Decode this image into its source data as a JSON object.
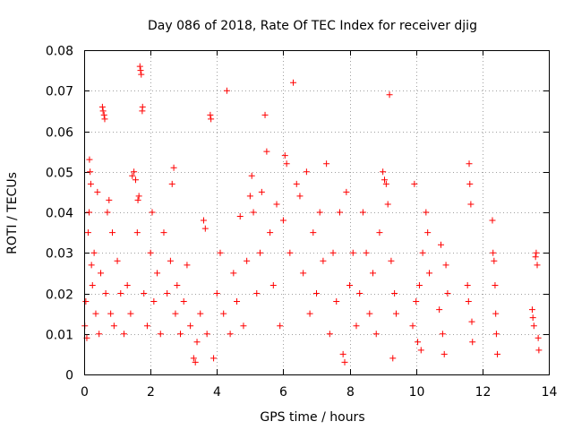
{
  "chart_data": {
    "type": "scatter",
    "title": "Day 086 of 2018, Rate Of TEC Index for receiver djig",
    "xlabel": "GPS time / hours",
    "ylabel": "ROTI / TECUs",
    "xlim": [
      0,
      14
    ],
    "ylim": [
      0,
      0.08
    ],
    "x_ticks": [
      0,
      2,
      4,
      6,
      8,
      10,
      12,
      14
    ],
    "x_tick_labels": [
      "0",
      "2",
      "4",
      "6",
      "8",
      "10",
      "12",
      "14"
    ],
    "y_ticks": [
      0,
      0.01,
      0.02,
      0.03,
      0.04,
      0.05,
      0.06,
      0.07,
      0.08
    ],
    "y_tick_labels": [
      "0",
      "0.01",
      "0.02",
      "0.03",
      "0.04",
      "0.05",
      "0.06",
      "0.07",
      "0.08"
    ],
    "grid": true,
    "marker": "plus",
    "color": "#ff0000",
    "series": [
      {
        "name": "ROTI",
        "points": [
          [
            0.02,
            0.012
          ],
          [
            0.05,
            0.018
          ],
          [
            0.08,
            0.009
          ],
          [
            0.12,
            0.035
          ],
          [
            0.15,
            0.04
          ],
          [
            0.16,
            0.053
          ],
          [
            0.18,
            0.05
          ],
          [
            0.2,
            0.047
          ],
          [
            0.22,
            0.027
          ],
          [
            0.25,
            0.022
          ],
          [
            0.3,
            0.03
          ],
          [
            0.35,
            0.015
          ],
          [
            0.4,
            0.045
          ],
          [
            0.45,
            0.01
          ],
          [
            0.5,
            0.025
          ],
          [
            0.55,
            0.066
          ],
          [
            0.57,
            0.065
          ],
          [
            0.6,
            0.064
          ],
          [
            0.62,
            0.063
          ],
          [
            0.65,
            0.02
          ],
          [
            0.7,
            0.04
          ],
          [
            0.75,
            0.043
          ],
          [
            0.8,
            0.015
          ],
          [
            0.85,
            0.035
          ],
          [
            0.9,
            0.012
          ],
          [
            1.0,
            0.028
          ],
          [
            1.1,
            0.02
          ],
          [
            1.2,
            0.01
          ],
          [
            1.3,
            0.022
          ],
          [
            1.4,
            0.015
          ],
          [
            1.45,
            0.049
          ],
          [
            1.5,
            0.05
          ],
          [
            1.55,
            0.048
          ],
          [
            1.6,
            0.035
          ],
          [
            1.62,
            0.043
          ],
          [
            1.65,
            0.044
          ],
          [
            1.68,
            0.076
          ],
          [
            1.7,
            0.075
          ],
          [
            1.72,
            0.074
          ],
          [
            1.75,
            0.065
          ],
          [
            1.76,
            0.066
          ],
          [
            1.8,
            0.02
          ],
          [
            1.9,
            0.012
          ],
          [
            2.0,
            0.03
          ],
          [
            2.05,
            0.04
          ],
          [
            2.1,
            0.018
          ],
          [
            2.2,
            0.025
          ],
          [
            2.3,
            0.01
          ],
          [
            2.4,
            0.035
          ],
          [
            2.5,
            0.02
          ],
          [
            2.6,
            0.028
          ],
          [
            2.65,
            0.047
          ],
          [
            2.7,
            0.051
          ],
          [
            2.75,
            0.015
          ],
          [
            2.8,
            0.022
          ],
          [
            2.9,
            0.01
          ],
          [
            3.0,
            0.018
          ],
          [
            3.1,
            0.027
          ],
          [
            3.2,
            0.012
          ],
          [
            3.3,
            0.004
          ],
          [
            3.35,
            0.003
          ],
          [
            3.4,
            0.008
          ],
          [
            3.5,
            0.015
          ],
          [
            3.6,
            0.038
          ],
          [
            3.65,
            0.036
          ],
          [
            3.7,
            0.01
          ],
          [
            3.8,
            0.064
          ],
          [
            3.82,
            0.063
          ],
          [
            3.9,
            0.004
          ],
          [
            4.0,
            0.02
          ],
          [
            4.1,
            0.03
          ],
          [
            4.2,
            0.015
          ],
          [
            4.3,
            0.07
          ],
          [
            4.4,
            0.01
          ],
          [
            4.5,
            0.025
          ],
          [
            4.6,
            0.018
          ],
          [
            4.7,
            0.039
          ],
          [
            4.8,
            0.012
          ],
          [
            4.9,
            0.028
          ],
          [
            5.0,
            0.044
          ],
          [
            5.05,
            0.049
          ],
          [
            5.1,
            0.04
          ],
          [
            5.2,
            0.02
          ],
          [
            5.3,
            0.03
          ],
          [
            5.35,
            0.045
          ],
          [
            5.45,
            0.064
          ],
          [
            5.5,
            0.055
          ],
          [
            5.6,
            0.035
          ],
          [
            5.7,
            0.022
          ],
          [
            5.8,
            0.042
          ],
          [
            5.9,
            0.012
          ],
          [
            6.0,
            0.038
          ],
          [
            6.05,
            0.054
          ],
          [
            6.1,
            0.052
          ],
          [
            6.2,
            0.03
          ],
          [
            6.3,
            0.072
          ],
          [
            6.4,
            0.047
          ],
          [
            6.5,
            0.044
          ],
          [
            6.6,
            0.025
          ],
          [
            6.7,
            0.05
          ],
          [
            6.8,
            0.015
          ],
          [
            6.9,
            0.035
          ],
          [
            7.0,
            0.02
          ],
          [
            7.1,
            0.04
          ],
          [
            7.2,
            0.028
          ],
          [
            7.3,
            0.052
          ],
          [
            7.4,
            0.01
          ],
          [
            7.5,
            0.03
          ],
          [
            7.6,
            0.018
          ],
          [
            7.7,
            0.04
          ],
          [
            7.8,
            0.005
          ],
          [
            7.85,
            0.003
          ],
          [
            7.9,
            0.045
          ],
          [
            8.0,
            0.022
          ],
          [
            8.1,
            0.03
          ],
          [
            8.2,
            0.012
          ],
          [
            8.3,
            0.02
          ],
          [
            8.4,
            0.04
          ],
          [
            8.5,
            0.03
          ],
          [
            8.6,
            0.015
          ],
          [
            8.7,
            0.025
          ],
          [
            8.8,
            0.01
          ],
          [
            8.9,
            0.035
          ],
          [
            9.0,
            0.05
          ],
          [
            9.05,
            0.048
          ],
          [
            9.1,
            0.047
          ],
          [
            9.15,
            0.042
          ],
          [
            9.2,
            0.069
          ],
          [
            9.25,
            0.028
          ],
          [
            9.3,
            0.004
          ],
          [
            9.35,
            0.02
          ],
          [
            9.4,
            0.015
          ],
          [
            9.9,
            0.012
          ],
          [
            9.95,
            0.047
          ],
          [
            10.0,
            0.018
          ],
          [
            10.05,
            0.008
          ],
          [
            10.1,
            0.022
          ],
          [
            10.15,
            0.006
          ],
          [
            10.2,
            0.03
          ],
          [
            10.3,
            0.04
          ],
          [
            10.35,
            0.035
          ],
          [
            10.4,
            0.025
          ],
          [
            10.7,
            0.016
          ],
          [
            10.75,
            0.032
          ],
          [
            10.8,
            0.01
          ],
          [
            10.85,
            0.005
          ],
          [
            10.9,
            0.027
          ],
          [
            10.95,
            0.02
          ],
          [
            11.55,
            0.022
          ],
          [
            11.58,
            0.018
          ],
          [
            11.6,
            0.052
          ],
          [
            11.62,
            0.047
          ],
          [
            11.65,
            0.042
          ],
          [
            11.68,
            0.013
          ],
          [
            11.7,
            0.008
          ],
          [
            12.3,
            0.038
          ],
          [
            12.32,
            0.03
          ],
          [
            12.35,
            0.028
          ],
          [
            12.38,
            0.022
          ],
          [
            12.4,
            0.015
          ],
          [
            12.42,
            0.01
          ],
          [
            12.45,
            0.005
          ],
          [
            13.5,
            0.016
          ],
          [
            13.52,
            0.014
          ],
          [
            13.55,
            0.012
          ],
          [
            13.6,
            0.029
          ],
          [
            13.62,
            0.03
          ],
          [
            13.65,
            0.027
          ],
          [
            13.68,
            0.009
          ],
          [
            13.7,
            0.006
          ]
        ]
      }
    ]
  }
}
